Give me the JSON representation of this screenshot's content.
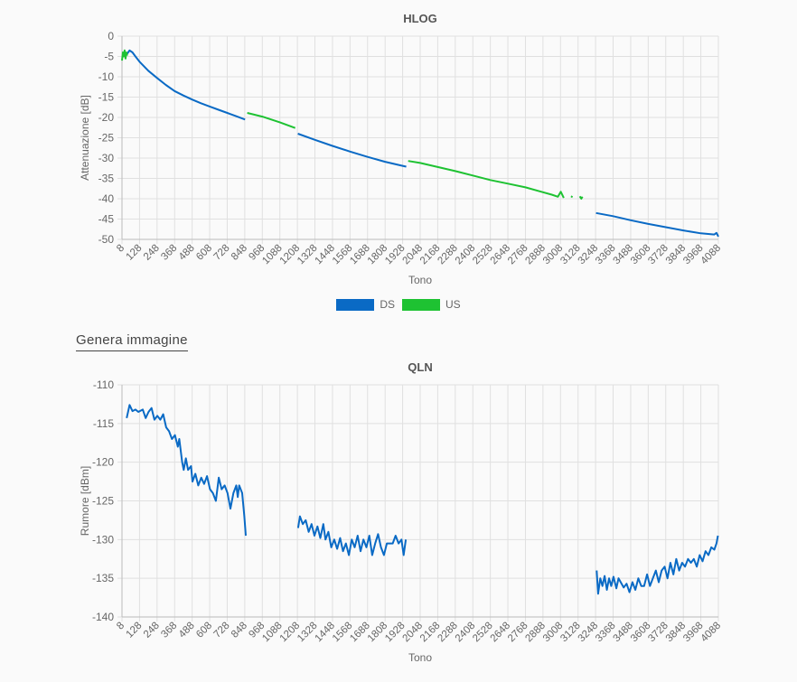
{
  "generate_image_label": "Genera immagine",
  "chart_data": [
    {
      "type": "line",
      "title": "HLOG",
      "xlabel": "Tono",
      "ylabel": "Attenuazione [dB]",
      "xlim": [
        8,
        4088
      ],
      "ylim": [
        -50,
        0
      ],
      "yticks": [
        0,
        -5,
        -10,
        -15,
        -20,
        -25,
        -30,
        -35,
        -40,
        -45,
        -50
      ],
      "xticks": [
        8,
        128,
        248,
        368,
        488,
        608,
        728,
        848,
        968,
        1088,
        1208,
        1328,
        1448,
        1568,
        1688,
        1808,
        1928,
        2048,
        2168,
        2288,
        2408,
        2528,
        2648,
        2768,
        2888,
        3008,
        3128,
        3248,
        3368,
        3488,
        3608,
        3728,
        3848,
        3968,
        4088
      ],
      "grid": true,
      "legend": "bottom",
      "legend_entries": [
        {
          "name": "DS",
          "color": "#0a6ac5"
        },
        {
          "name": "US",
          "color": "#1ec232"
        }
      ],
      "series": [
        {
          "name": "DS",
          "color": "#0a6ac5",
          "segments": [
            [
              [
                40,
                -4.5
              ],
              [
                60,
                -3.5
              ],
              [
                80,
                -4
              ],
              [
                100,
                -5
              ],
              [
                128,
                -6.3
              ],
              [
                188,
                -8.5
              ],
              [
                248,
                -10.3
              ],
              [
                308,
                -12
              ],
              [
                368,
                -13.5
              ],
              [
                428,
                -14.6
              ],
              [
                488,
                -15.6
              ],
              [
                548,
                -16.5
              ],
              [
                608,
                -17.3
              ],
              [
                668,
                -18.1
              ],
              [
                728,
                -18.9
              ],
              [
                788,
                -19.7
              ],
              [
                850,
                -20.5
              ]
            ],
            [
              [
                1211,
                -24
              ],
              [
                1328,
                -25.5
              ],
              [
                1448,
                -27
              ],
              [
                1568,
                -28.4
              ],
              [
                1688,
                -29.7
              ],
              [
                1808,
                -30.9
              ],
              [
                1928,
                -31.9
              ],
              [
                1953,
                -32.1
              ]
            ],
            [
              [
                3251,
                -43.5
              ],
              [
                3368,
                -44.3
              ],
              [
                3488,
                -45.3
              ],
              [
                3608,
                -46.2
              ],
              [
                3728,
                -47
              ],
              [
                3848,
                -47.8
              ],
              [
                3968,
                -48.5
              ],
              [
                4060,
                -48.8
              ],
              [
                4075,
                -48.4
              ],
              [
                4088,
                -49.3
              ]
            ]
          ]
        },
        {
          "name": "US",
          "color": "#1ec232",
          "segments": [
            [
              [
                8,
                -6
              ],
              [
                14,
                -4
              ],
              [
                20,
                -5
              ],
              [
                26,
                -3.5
              ],
              [
                32,
                -5.5
              ],
              [
                38,
                -4
              ],
              [
                44,
                -4.8
              ]
            ],
            [
              [
                865,
                -18.9
              ],
              [
                968,
                -19.8
              ],
              [
                1088,
                -21.2
              ],
              [
                1193,
                -22.6
              ]
            ],
            [
              [
                1966,
                -30.7
              ],
              [
                2048,
                -31.2
              ],
              [
                2168,
                -32.2
              ],
              [
                2288,
                -33.2
              ],
              [
                2408,
                -34.3
              ],
              [
                2528,
                -35.4
              ],
              [
                2648,
                -36.3
              ],
              [
                2768,
                -37.2
              ],
              [
                2888,
                -38.4
              ],
              [
                2948,
                -39
              ],
              [
                2990,
                -39.5
              ],
              [
                3010,
                -38.3
              ],
              [
                3030,
                -39.8
              ]
            ],
            [
              [
                3080,
                -39.4
              ],
              [
                3090,
                -39.6
              ]
            ],
            [
              [
                3140,
                -39.4
              ],
              [
                3150,
                -40
              ],
              [
                3158,
                -39.5
              ]
            ]
          ]
        }
      ]
    },
    {
      "type": "line",
      "title": "QLN",
      "xlabel": "Tono",
      "ylabel": "Rumore [dBm]",
      "xlim": [
        8,
        4088
      ],
      "ylim": [
        -140,
        -110
      ],
      "yticks": [
        -110,
        -115,
        -120,
        -125,
        -130,
        -135,
        -140
      ],
      "xticks": [
        8,
        128,
        248,
        368,
        488,
        608,
        728,
        848,
        968,
        1088,
        1208,
        1328,
        1448,
        1568,
        1688,
        1808,
        1928,
        2048,
        2168,
        2288,
        2408,
        2528,
        2648,
        2768,
        2888,
        3008,
        3128,
        3248,
        3368,
        3488,
        3608,
        3728,
        3848,
        3968,
        4088
      ],
      "grid": true,
      "series": [
        {
          "name": "DS",
          "color": "#0a6ac5",
          "segments": [
            [
              [
                40,
                -114.3
              ],
              [
                60,
                -112.6
              ],
              [
                80,
                -113.4
              ],
              [
                100,
                -113.2
              ],
              [
                120,
                -113.5
              ],
              [
                150,
                -113.2
              ],
              [
                170,
                -114.3
              ],
              [
                190,
                -113.5
              ],
              [
                210,
                -113
              ],
              [
                230,
                -114.5
              ],
              [
                250,
                -114
              ],
              [
                270,
                -114.5
              ],
              [
                290,
                -113.8
              ],
              [
                310,
                -115.5
              ],
              [
                330,
                -116
              ],
              [
                350,
                -117
              ],
              [
                370,
                -116.5
              ],
              [
                390,
                -118
              ],
              [
                400,
                -117
              ],
              [
                420,
                -120
              ],
              [
                430,
                -121
              ],
              [
                445,
                -119.5
              ],
              [
                460,
                -121
              ],
              [
                480,
                -120.5
              ],
              [
                490,
                -122.5
              ],
              [
                510,
                -121.5
              ],
              [
                530,
                -123
              ],
              [
                550,
                -122
              ],
              [
                570,
                -122.8
              ],
              [
                590,
                -121.8
              ],
              [
                610,
                -123.5
              ],
              [
                630,
                -124
              ],
              [
                650,
                -125
              ],
              [
                670,
                -122
              ],
              [
                690,
                -123.5
              ],
              [
                710,
                -123
              ],
              [
                730,
                -124
              ],
              [
                750,
                -126
              ],
              [
                770,
                -124
              ],
              [
                790,
                -123
              ],
              [
                800,
                -124.5
              ],
              [
                810,
                -123
              ],
              [
                830,
                -124
              ],
              [
                845,
                -127
              ],
              [
                855,
                -129.5
              ]
            ],
            [
              [
                1213,
                -128.5
              ],
              [
                1225,
                -127
              ],
              [
                1245,
                -128
              ],
              [
                1265,
                -127.5
              ],
              [
                1285,
                -129
              ],
              [
                1305,
                -128
              ],
              [
                1325,
                -129.5
              ],
              [
                1345,
                -128.3
              ],
              [
                1365,
                -129.8
              ],
              [
                1385,
                -128
              ],
              [
                1400,
                -130
              ],
              [
                1420,
                -129
              ],
              [
                1440,
                -131
              ],
              [
                1460,
                -130
              ],
              [
                1480,
                -131.2
              ],
              [
                1500,
                -129.8
              ],
              [
                1520,
                -131.5
              ],
              [
                1540,
                -130.5
              ],
              [
                1560,
                -132
              ],
              [
                1580,
                -130
              ],
              [
                1600,
                -131
              ],
              [
                1620,
                -129.5
              ],
              [
                1640,
                -131.5
              ],
              [
                1660,
                -130
              ],
              [
                1680,
                -131
              ],
              [
                1700,
                -129.5
              ],
              [
                1720,
                -132
              ],
              [
                1740,
                -130.5
              ],
              [
                1760,
                -129.3
              ],
              [
                1780,
                -131
              ],
              [
                1800,
                -132
              ],
              [
                1820,
                -130.5
              ],
              [
                1840,
                -130.5
              ],
              [
                1860,
                -130.5
              ],
              [
                1880,
                -129.5
              ],
              [
                1900,
                -130.5
              ],
              [
                1920,
                -130
              ],
              [
                1935,
                -132
              ],
              [
                1950,
                -130
              ]
            ],
            [
              [
                3255,
                -134
              ],
              [
                3265,
                -137
              ],
              [
                3280,
                -135
              ],
              [
                3295,
                -136
              ],
              [
                3310,
                -134.7
              ],
              [
                3325,
                -136.5
              ],
              [
                3340,
                -135
              ],
              [
                3355,
                -136
              ],
              [
                3370,
                -134.8
              ],
              [
                3390,
                -136.3
              ],
              [
                3405,
                -135
              ],
              [
                3420,
                -135.5
              ],
              [
                3440,
                -136.2
              ],
              [
                3460,
                -135.7
              ],
              [
                3480,
                -136.8
              ],
              [
                3500,
                -135.5
              ],
              [
                3520,
                -136.5
              ],
              [
                3540,
                -135
              ],
              [
                3560,
                -136
              ],
              [
                3580,
                -136
              ],
              [
                3600,
                -134.5
              ],
              [
                3620,
                -136
              ],
              [
                3640,
                -135
              ],
              [
                3660,
                -134
              ],
              [
                3680,
                -135.5
              ],
              [
                3700,
                -134
              ],
              [
                3720,
                -133.5
              ],
              [
                3740,
                -135
              ],
              [
                3760,
                -133
              ],
              [
                3780,
                -134.5
              ],
              [
                3800,
                -132.5
              ],
              [
                3820,
                -134
              ],
              [
                3840,
                -133
              ],
              [
                3860,
                -133.5
              ],
              [
                3880,
                -132.5
              ],
              [
                3900,
                -133
              ],
              [
                3920,
                -132.5
              ],
              [
                3940,
                -133.5
              ],
              [
                3960,
                -132
              ],
              [
                3980,
                -132.8
              ],
              [
                4000,
                -131.5
              ],
              [
                4020,
                -132
              ],
              [
                4040,
                -131
              ],
              [
                4060,
                -131.3
              ],
              [
                4075,
                -130.5
              ],
              [
                4085,
                -129.5
              ]
            ]
          ]
        }
      ]
    }
  ]
}
